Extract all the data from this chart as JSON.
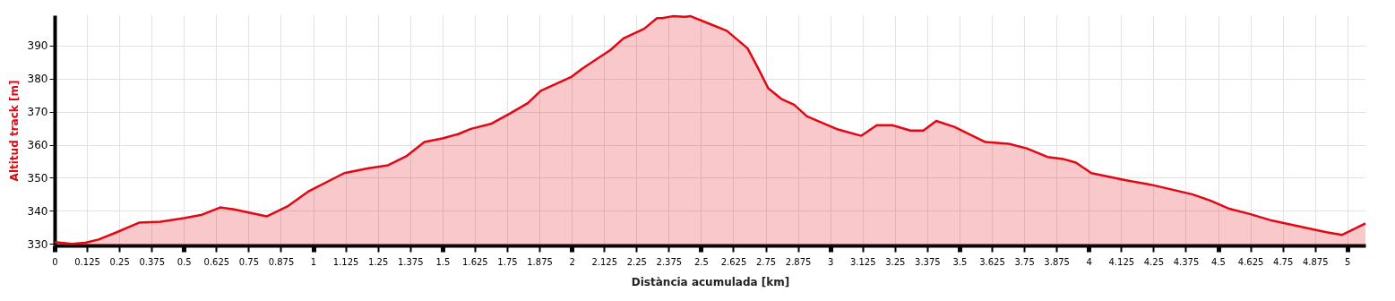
{
  "chart_data": {
    "type": "area",
    "xlabel": "Distància acumulada [km]",
    "ylabel": "Altitud track [m]",
    "x": [
      0,
      0.066,
      0.118,
      0.17,
      0.24,
      0.326,
      0.41,
      0.5,
      0.57,
      0.64,
      0.69,
      0.82,
      0.9,
      0.98,
      1.12,
      1.21,
      1.29,
      1.36,
      1.43,
      1.5,
      1.56,
      1.61,
      1.69,
      1.76,
      1.83,
      1.88,
      2.0,
      2.04,
      2.15,
      2.2,
      2.28,
      2.33,
      2.35,
      2.39,
      2.44,
      2.46,
      2.53,
      2.6,
      2.68,
      2.72,
      2.76,
      2.81,
      2.86,
      2.91,
      3.03,
      3.12,
      3.18,
      3.24,
      3.31,
      3.36,
      3.41,
      3.48,
      3.6,
      3.69,
      3.76,
      3.84,
      3.9,
      3.95,
      4.01,
      4.14,
      4.24,
      4.4,
      4.47,
      4.54,
      4.62,
      4.71,
      4.92,
      4.98,
      5.07
    ],
    "series": [
      {
        "color": "#e30613",
        "values": [
          330.5,
          330,
          330.3,
          331.3,
          333.5,
          336.4,
          336.7,
          337.8,
          338.8,
          341,
          340.5,
          338.3,
          341.3,
          345.8,
          351.4,
          352.8,
          353.8,
          356.5,
          360.8,
          361.9,
          363.2,
          364.8,
          366.4,
          369.4,
          372.6,
          376.3,
          380.6,
          383,
          388.7,
          392.2,
          395.1,
          398.3,
          398.3,
          398.9,
          398.7,
          398.9,
          396.7,
          394.5,
          389.2,
          383.3,
          377.1,
          373.9,
          372.1,
          368.6,
          364.6,
          362.7,
          365.9,
          365.9,
          364.3,
          364.3,
          367.2,
          365.4,
          360.8,
          360.3,
          358.9,
          356.3,
          355.7,
          354.6,
          351.4,
          349.3,
          347.9,
          345,
          343.1,
          340.7,
          339.1,
          337,
          333.5,
          332.7,
          336.2
        ]
      }
    ],
    "xlim": [
      0,
      5.07
    ],
    "ylim": [
      329.5,
      399.2
    ],
    "xticks": [
      0,
      0.125,
      0.25,
      0.375,
      0.5,
      0.625,
      0.75,
      0.875,
      1,
      1.125,
      1.25,
      1.375,
      1.5,
      1.625,
      1.75,
      1.875,
      2,
      2.125,
      2.25,
      2.375,
      2.5,
      2.625,
      2.75,
      2.875,
      3,
      3.125,
      3.25,
      3.375,
      3.5,
      3.625,
      3.75,
      3.875,
      4,
      4.125,
      4.25,
      4.375,
      4.5,
      4.625,
      4.75,
      4.875,
      5
    ],
    "yticks": [
      330,
      340,
      350,
      360,
      370,
      380,
      390
    ],
    "grid": true
  }
}
